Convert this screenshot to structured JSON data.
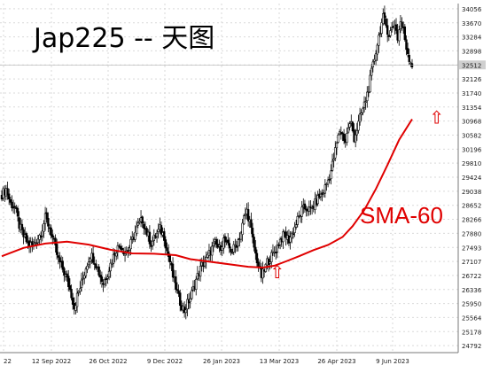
{
  "chart_data": {
    "type": "candlestick",
    "title": "Jap225 -- 天图",
    "indicator_label": "SMA-60",
    "current_price_label": "32512",
    "ylim": [
      24600,
      34200
    ],
    "y_ticks": [
      24792,
      25178,
      25564,
      25950,
      26336,
      26722,
      27107,
      27493,
      27880,
      28266,
      28652,
      29038,
      29424,
      29810,
      30196,
      30582,
      30968,
      31354,
      31740,
      32126,
      32512,
      32898,
      33284,
      33670,
      34056
    ],
    "x_ticks": [
      "22",
      "12 Sep 2022",
      "26 Oct 2022",
      "9 Dec 2022",
      "26 Jan 2023",
      "13 Mar 2023",
      "26 Apr 2023",
      "9 Jun 2023"
    ],
    "close_path": [
      [
        0,
        28950
      ],
      [
        3,
        29100
      ],
      [
        6,
        28700
      ],
      [
        9,
        28600
      ],
      [
        12,
        28100
      ],
      [
        15,
        27800
      ],
      [
        18,
        27600
      ],
      [
        21,
        27550
      ],
      [
        24,
        27700
      ],
      [
        27,
        27900
      ],
      [
        30,
        28300
      ],
      [
        33,
        28050
      ],
      [
        36,
        27600
      ],
      [
        39,
        27150
      ],
      [
        42,
        26900
      ],
      [
        45,
        26600
      ],
      [
        48,
        26200
      ],
      [
        50,
        25850
      ],
      [
        52,
        26150
      ],
      [
        55,
        26500
      ],
      [
        58,
        26950
      ],
      [
        61,
        27300
      ],
      [
        64,
        27150
      ],
      [
        67,
        26800
      ],
      [
        70,
        26500
      ],
      [
        73,
        26800
      ],
      [
        76,
        27150
      ],
      [
        79,
        27450
      ],
      [
        82,
        27550
      ],
      [
        85,
        27350
      ],
      [
        88,
        27500
      ],
      [
        91,
        27800
      ],
      [
        94,
        28100
      ],
      [
        97,
        28250
      ],
      [
        100,
        27900
      ],
      [
        103,
        27600
      ],
      [
        106,
        27800
      ],
      [
        109,
        28000
      ],
      [
        112,
        27800
      ],
      [
        114,
        27400
      ],
      [
        116,
        27100
      ],
      [
        118,
        26700
      ],
      [
        120,
        26400
      ],
      [
        122,
        26100
      ],
      [
        124,
        25900
      ],
      [
        126,
        25750
      ],
      [
        128,
        25950
      ],
      [
        130,
        26100
      ],
      [
        132,
        26350
      ],
      [
        134,
        26600
      ],
      [
        136,
        26800
      ],
      [
        138,
        27000
      ],
      [
        141,
        27150
      ],
      [
        144,
        27400
      ],
      [
        147,
        27600
      ],
      [
        150,
        27450
      ],
      [
        153,
        27700
      ],
      [
        156,
        27500
      ],
      [
        159,
        27400
      ],
      [
        162,
        27600
      ],
      [
        165,
        27900
      ],
      [
        167,
        28300
      ],
      [
        169,
        28500
      ],
      [
        171,
        28200
      ],
      [
        173,
        27700
      ],
      [
        175,
        27300
      ],
      [
        177,
        27000
      ],
      [
        179,
        26700
      ],
      [
        181,
        26850
      ],
      [
        183,
        27100
      ],
      [
        186,
        27250
      ],
      [
        189,
        27450
      ],
      [
        192,
        27700
      ],
      [
        195,
        27850
      ],
      [
        198,
        27700
      ],
      [
        201,
        27950
      ],
      [
        204,
        28250
      ],
      [
        207,
        28500
      ],
      [
        210,
        28600
      ],
      [
        213,
        28500
      ],
      [
        216,
        28700
      ],
      [
        219,
        28900
      ],
      [
        221,
        28950
      ],
      [
        223,
        29150
      ],
      [
        225,
        29350
      ],
      [
        227,
        29600
      ],
      [
        229,
        29950
      ],
      [
        231,
        30350
      ],
      [
        233,
        30700
      ],
      [
        235,
        30600
      ],
      [
        237,
        30400
      ],
      [
        239,
        30800
      ],
      [
        241,
        30900
      ],
      [
        243,
        30500
      ],
      [
        245,
        30750
      ],
      [
        247,
        31050
      ],
      [
        249,
        31300
      ],
      [
        251,
        31550
      ],
      [
        253,
        31900
      ],
      [
        255,
        32300
      ],
      [
        257,
        32700
      ],
      [
        259,
        33100
      ],
      [
        261,
        33500
      ],
      [
        263,
        33800
      ],
      [
        265,
        33600
      ],
      [
        267,
        33350
      ],
      [
        269,
        33500
      ],
      [
        271,
        33650
      ],
      [
        273,
        33250
      ],
      [
        275,
        33700
      ],
      [
        277,
        33450
      ],
      [
        279,
        33000
      ],
      [
        281,
        32700
      ],
      [
        283,
        32512
      ]
    ],
    "sma60_path": [
      [
        0,
        27250
      ],
      [
        15,
        27480
      ],
      [
        30,
        27600
      ],
      [
        45,
        27650
      ],
      [
        60,
        27570
      ],
      [
        75,
        27430
      ],
      [
        90,
        27330
      ],
      [
        105,
        27320
      ],
      [
        120,
        27280
      ],
      [
        130,
        27170
      ],
      [
        140,
        27120
      ],
      [
        155,
        27040
      ],
      [
        170,
        26960
      ],
      [
        180,
        26940
      ],
      [
        188,
        26990
      ],
      [
        196,
        27110
      ],
      [
        205,
        27250
      ],
      [
        215,
        27420
      ],
      [
        225,
        27560
      ],
      [
        235,
        27780
      ],
      [
        242,
        28080
      ],
      [
        250,
        28520
      ],
      [
        258,
        29100
      ],
      [
        266,
        29760
      ],
      [
        274,
        30450
      ],
      [
        283,
        31020
      ]
    ],
    "annotations": [
      {
        "symbol": "⇧",
        "x": 190,
        "y": 26650,
        "color": "#e00000"
      },
      {
        "symbol": "⇧",
        "x": 300,
        "y": 30900,
        "color": "#e00000"
      }
    ],
    "colors": {
      "candle": "#000000",
      "sma": "#e00000",
      "grid": "#d9d9d9",
      "axis_text": "#1a1a1a",
      "annotation": "#e00000"
    }
  }
}
